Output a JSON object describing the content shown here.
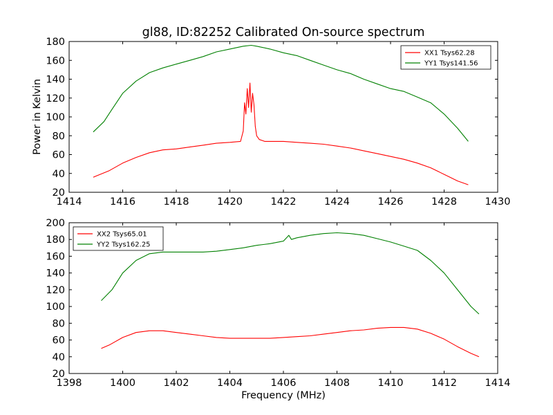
{
  "chart_data": [
    {
      "type": "line",
      "title": "gl88, ID:82252 Calibrated On-source spectrum",
      "xlabel": "",
      "ylabel": "Power in Kelvin",
      "xlim": [
        1414,
        1430
      ],
      "ylim": [
        20,
        180
      ],
      "xticks": [
        1414,
        1416,
        1418,
        1420,
        1422,
        1424,
        1426,
        1428,
        1430
      ],
      "yticks": [
        20,
        40,
        60,
        80,
        100,
        120,
        140,
        160,
        180
      ],
      "grid": false,
      "legend_position": "top-right",
      "series": [
        {
          "name": "XX1 Tsys62.28",
          "color": "#ff0000",
          "points": [
            [
              1414.9,
              36
            ],
            [
              1415.5,
              43
            ],
            [
              1416,
              51
            ],
            [
              1416.5,
              57
            ],
            [
              1417,
              62
            ],
            [
              1417.5,
              65
            ],
            [
              1418,
              66
            ],
            [
              1418.5,
              68
            ],
            [
              1419,
              70
            ],
            [
              1419.5,
              72
            ],
            [
              1420,
              73
            ],
            [
              1420.4,
              74
            ],
            [
              1420.5,
              85
            ],
            [
              1420.55,
              115
            ],
            [
              1420.6,
              103
            ],
            [
              1420.65,
              130
            ],
            [
              1420.7,
              110
            ],
            [
              1420.75,
              136
            ],
            [
              1420.8,
              105
            ],
            [
              1420.85,
              125
            ],
            [
              1420.9,
              113
            ],
            [
              1420.95,
              90
            ],
            [
              1421,
              80
            ],
            [
              1421.1,
              76
            ],
            [
              1421.3,
              74
            ],
            [
              1422,
              74
            ],
            [
              1422.5,
              73
            ],
            [
              1423,
              72
            ],
            [
              1423.5,
              71
            ],
            [
              1424,
              69
            ],
            [
              1424.5,
              67
            ],
            [
              1425,
              64
            ],
            [
              1425.5,
              61
            ],
            [
              1426,
              58
            ],
            [
              1426.5,
              55
            ],
            [
              1427,
              51
            ],
            [
              1427.5,
              46
            ],
            [
              1428,
              39
            ],
            [
              1428.5,
              32
            ],
            [
              1428.9,
              28
            ]
          ]
        },
        {
          "name": "YY1 Tsys141.56",
          "color": "#008000",
          "points": [
            [
              1414.9,
              84
            ],
            [
              1415.3,
              95
            ],
            [
              1415.6,
              108
            ],
            [
              1416,
              125
            ],
            [
              1416.5,
              138
            ],
            [
              1417,
              147
            ],
            [
              1417.5,
              152
            ],
            [
              1418,
              156
            ],
            [
              1418.5,
              160
            ],
            [
              1419,
              164
            ],
            [
              1419.5,
              169
            ],
            [
              1420,
              172
            ],
            [
              1420.5,
              175
            ],
            [
              1420.8,
              176
            ],
            [
              1421,
              175
            ],
            [
              1421.5,
              172
            ],
            [
              1422,
              168
            ],
            [
              1422.5,
              165
            ],
            [
              1423,
              160
            ],
            [
              1423.5,
              155
            ],
            [
              1424,
              150
            ],
            [
              1424.5,
              146
            ],
            [
              1425,
              140
            ],
            [
              1425.5,
              135
            ],
            [
              1426,
              130
            ],
            [
              1426.5,
              127
            ],
            [
              1427,
              121
            ],
            [
              1427.5,
              115
            ],
            [
              1428,
              103
            ],
            [
              1428.5,
              88
            ],
            [
              1428.9,
              74
            ]
          ]
        }
      ]
    },
    {
      "type": "line",
      "title": "",
      "xlabel": "Frequency (MHz)",
      "ylabel": "",
      "xlim": [
        1398,
        1414
      ],
      "ylim": [
        20,
        200
      ],
      "xticks": [
        1398,
        1400,
        1402,
        1404,
        1406,
        1408,
        1410,
        1412,
        1414
      ],
      "yticks": [
        20,
        40,
        60,
        80,
        100,
        120,
        140,
        160,
        180,
        200
      ],
      "grid": false,
      "legend_position": "top-left",
      "series": [
        {
          "name": "XX2 Tsys65.01",
          "color": "#ff0000",
          "points": [
            [
              1399.2,
              50
            ],
            [
              1399.5,
              54
            ],
            [
              1400,
              63
            ],
            [
              1400.5,
              69
            ],
            [
              1401,
              71
            ],
            [
              1401.5,
              71
            ],
            [
              1402,
              69
            ],
            [
              1402.5,
              67
            ],
            [
              1403,
              65
            ],
            [
              1403.5,
              63
            ],
            [
              1404,
              62
            ],
            [
              1404.5,
              62
            ],
            [
              1405,
              62
            ],
            [
              1405.5,
              62
            ],
            [
              1406,
              63
            ],
            [
              1406.5,
              64
            ],
            [
              1407,
              65
            ],
            [
              1407.5,
              67
            ],
            [
              1408,
              69
            ],
            [
              1408.5,
              71
            ],
            [
              1409,
              72
            ],
            [
              1409.5,
              74
            ],
            [
              1410,
              75
            ],
            [
              1410.5,
              75
            ],
            [
              1411,
              73
            ],
            [
              1411.5,
              68
            ],
            [
              1412,
              61
            ],
            [
              1412.5,
              52
            ],
            [
              1413,
              44
            ],
            [
              1413.3,
              40
            ]
          ]
        },
        {
          "name": "YY2 Tsys162.25",
          "color": "#008000",
          "points": [
            [
              1399.2,
              107
            ],
            [
              1399.6,
              120
            ],
            [
              1400,
              140
            ],
            [
              1400.5,
              155
            ],
            [
              1401,
              163
            ],
            [
              1401.5,
              165
            ],
            [
              1402,
              165
            ],
            [
              1402.5,
              165
            ],
            [
              1403,
              165
            ],
            [
              1403.5,
              166
            ],
            [
              1404,
              168
            ],
            [
              1404.5,
              170
            ],
            [
              1405,
              173
            ],
            [
              1405.5,
              175
            ],
            [
              1406,
              178
            ],
            [
              1406.2,
              185
            ],
            [
              1406.3,
              180
            ],
            [
              1406.5,
              182
            ],
            [
              1407,
              185
            ],
            [
              1407.5,
              187
            ],
            [
              1408,
              188
            ],
            [
              1408.5,
              187
            ],
            [
              1409,
              185
            ],
            [
              1409.5,
              181
            ],
            [
              1410,
              177
            ],
            [
              1410.5,
              172
            ],
            [
              1411,
              167
            ],
            [
              1411.5,
              155
            ],
            [
              1412,
              140
            ],
            [
              1412.5,
              120
            ],
            [
              1413,
              100
            ],
            [
              1413.3,
              91
            ]
          ]
        }
      ]
    }
  ]
}
